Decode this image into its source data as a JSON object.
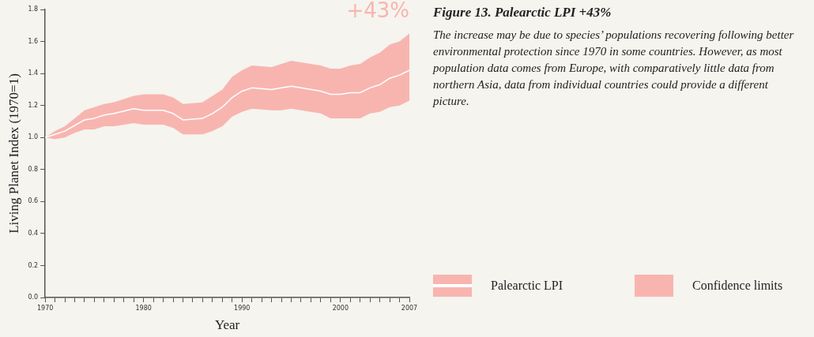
{
  "chart_data": {
    "type": "line",
    "title": "Figure 13. Palearctic LPI +43%",
    "subtitle": "The increase may be due to species’ populations recovering following better environmental protection since 1970 in some countries. However, as most population data comes from Europe, with comparatively little data from northern Asia, data from individual countries could provide a different picture.",
    "xlabel": "Year",
    "ylabel": "Living Planet Index (1970=1)",
    "annotations": [
      "+43%",
      "Confidence limits"
    ],
    "x": [
      1970,
      1971,
      1972,
      1973,
      1974,
      1975,
      1976,
      1977,
      1979,
      1980,
      1982,
      1983,
      1984,
      1986,
      1987,
      1988,
      1989,
      1990,
      1991,
      1993,
      1994,
      1995,
      1996,
      1998,
      1999,
      2000,
      2001,
      2002,
      2003,
      2004,
      2005,
      2006,
      2007
    ],
    "series": [
      {
        "name": "Palearctic LPI",
        "color": "#ffffff",
        "values": [
          1.0,
          1.02,
          1.04,
          1.075,
          1.11,
          1.12,
          1.14,
          1.15,
          1.18,
          1.17,
          1.17,
          1.15,
          1.11,
          1.12,
          1.15,
          1.19,
          1.25,
          1.29,
          1.31,
          1.3,
          1.31,
          1.32,
          1.31,
          1.29,
          1.27,
          1.27,
          1.28,
          1.28,
          1.31,
          1.33,
          1.37,
          1.39,
          1.42
        ],
        "lower": [
          1.0,
          0.99,
          1.0,
          1.03,
          1.05,
          1.05,
          1.07,
          1.07,
          1.09,
          1.08,
          1.08,
          1.06,
          1.02,
          1.02,
          1.04,
          1.07,
          1.13,
          1.16,
          1.18,
          1.17,
          1.17,
          1.18,
          1.17,
          1.15,
          1.12,
          1.12,
          1.12,
          1.12,
          1.15,
          1.16,
          1.19,
          1.2,
          1.23
        ],
        "upper": [
          1.0,
          1.04,
          1.07,
          1.12,
          1.17,
          1.19,
          1.21,
          1.22,
          1.26,
          1.27,
          1.27,
          1.25,
          1.21,
          1.22,
          1.26,
          1.3,
          1.38,
          1.42,
          1.45,
          1.44,
          1.46,
          1.48,
          1.47,
          1.45,
          1.43,
          1.43,
          1.45,
          1.46,
          1.5,
          1.53,
          1.58,
          1.6,
          1.65
        ]
      }
    ],
    "xlim": [
      1970,
      2007
    ],
    "xticks": [
      1970,
      {
        "value": 1971,
        "label": null
      },
      {
        "value": 1972,
        "label": null
      },
      {
        "value": 1973,
        "label": null
      },
      {
        "value": 1974,
        "label": null
      },
      {
        "value": 1975,
        "label": null
      },
      {
        "value": 1976,
        "label": null
      },
      {
        "value": 1977,
        "label": null
      },
      {
        "value": 1978,
        "label": null
      },
      {
        "value": 1979,
        "label": null
      },
      1980,
      {
        "value": 1981,
        "label": null
      },
      {
        "value": 1982,
        "label": null
      },
      {
        "value": 1983,
        "label": null
      },
      {
        "value": 1984,
        "label": null
      },
      {
        "value": 1985,
        "label": null
      },
      {
        "value": 1986,
        "label": null
      },
      {
        "value": 1987,
        "label": null
      },
      {
        "value": 1988,
        "label": null
      },
      {
        "value": 1989,
        "label": null
      },
      1990,
      {
        "value": 1991,
        "label": null
      },
      {
        "value": 1992,
        "label": null
      },
      {
        "value": 1993,
        "label": null
      },
      {
        "value": 1994,
        "label": null
      },
      {
        "value": 1995,
        "label": null
      },
      {
        "value": 1996,
        "label": null
      },
      {
        "value": 1997,
        "label": null
      },
      {
        "value": 1998,
        "label": null
      },
      {
        "value": 1999,
        "label": null
      },
      2000,
      {
        "value": 2001,
        "label": null
      },
      {
        "value": 2002,
        "label": null
      },
      {
        "value": 2003,
        "label": null
      },
      {
        "value": 2004,
        "label": null
      },
      {
        "value": 2005,
        "label": null
      },
      {
        "value": 2006,
        "label": null
      },
      2007
    ],
    "ylim": [
      0,
      1.8
    ],
    "yticks": [
      {
        "value": 0,
        "label": "0.0"
      },
      {
        "value": 0.2,
        "label": "0.2"
      },
      {
        "value": 0.4,
        "label": "0.4"
      },
      {
        "value": 0.6,
        "label": "0.6"
      },
      {
        "value": 0.8,
        "label": "0.8"
      },
      {
        "value": 1,
        "label": "1.0"
      },
      {
        "value": 1.2,
        "label": "1.2"
      },
      {
        "value": 1.4,
        "label": "1.4"
      },
      {
        "value": 1.6,
        "label": "1.6"
      },
      {
        "value": 1.8,
        "label": "1.8"
      }
    ],
    "legend": "bottom right",
    "marker": "none",
    "line_style": "solid"
  }
}
